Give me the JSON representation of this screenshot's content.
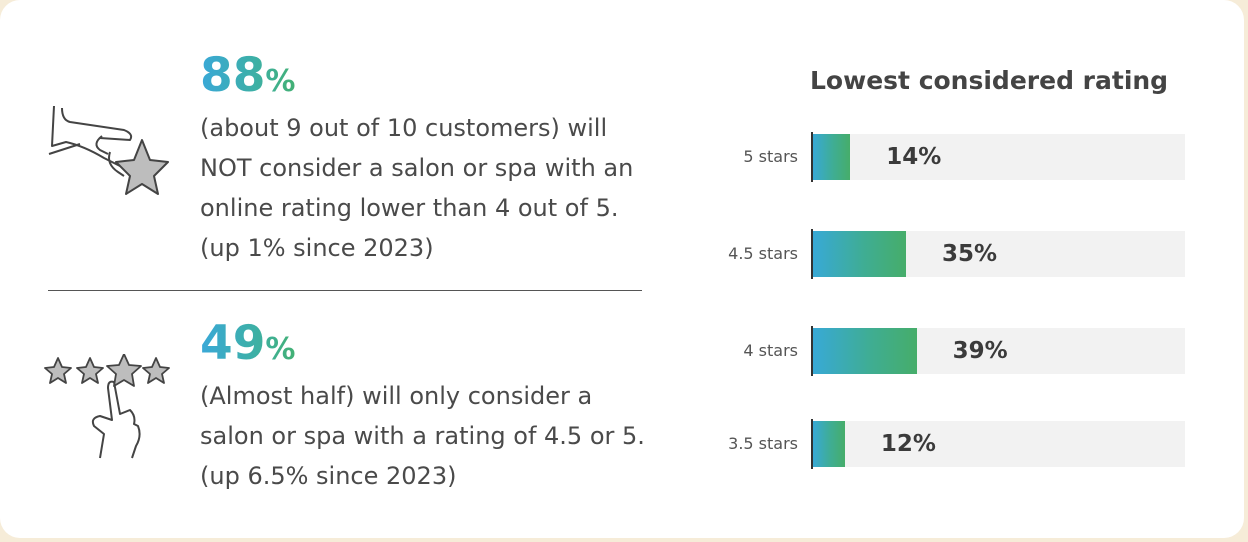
{
  "stat_top": {
    "number": "88",
    "unit": "%",
    "text": "(about 9 out of 10 customers) will\nNOT consider a salon or spa with an\nonline rating lower than 4 out of 5.\n(up 1% since 2023)",
    "icon": "hand-holding-star-icon"
  },
  "stat_bottom": {
    "number": "49",
    "unit": "%",
    "text": "(Almost half) will only consider a\nsalon or spa with a rating of 4.5 or 5.\n(up 6.5% since 2023)",
    "icon": "finger-selecting-stars-icon"
  },
  "chart_data": {
    "type": "bar",
    "orientation": "horizontal",
    "title": "Lowest considered rating",
    "categories": [
      "5 stars",
      "4.5 stars",
      "4 stars",
      "3.5 stars"
    ],
    "values": [
      14,
      35,
      39,
      12
    ],
    "value_labels": [
      "14%",
      "35%",
      "39%",
      "12%"
    ],
    "xlim": [
      0,
      140
    ],
    "grid": false,
    "colors": {
      "bar_start": "#38a9d6",
      "bar_end": "#46ad6a",
      "track": "#f2f2f2"
    }
  }
}
